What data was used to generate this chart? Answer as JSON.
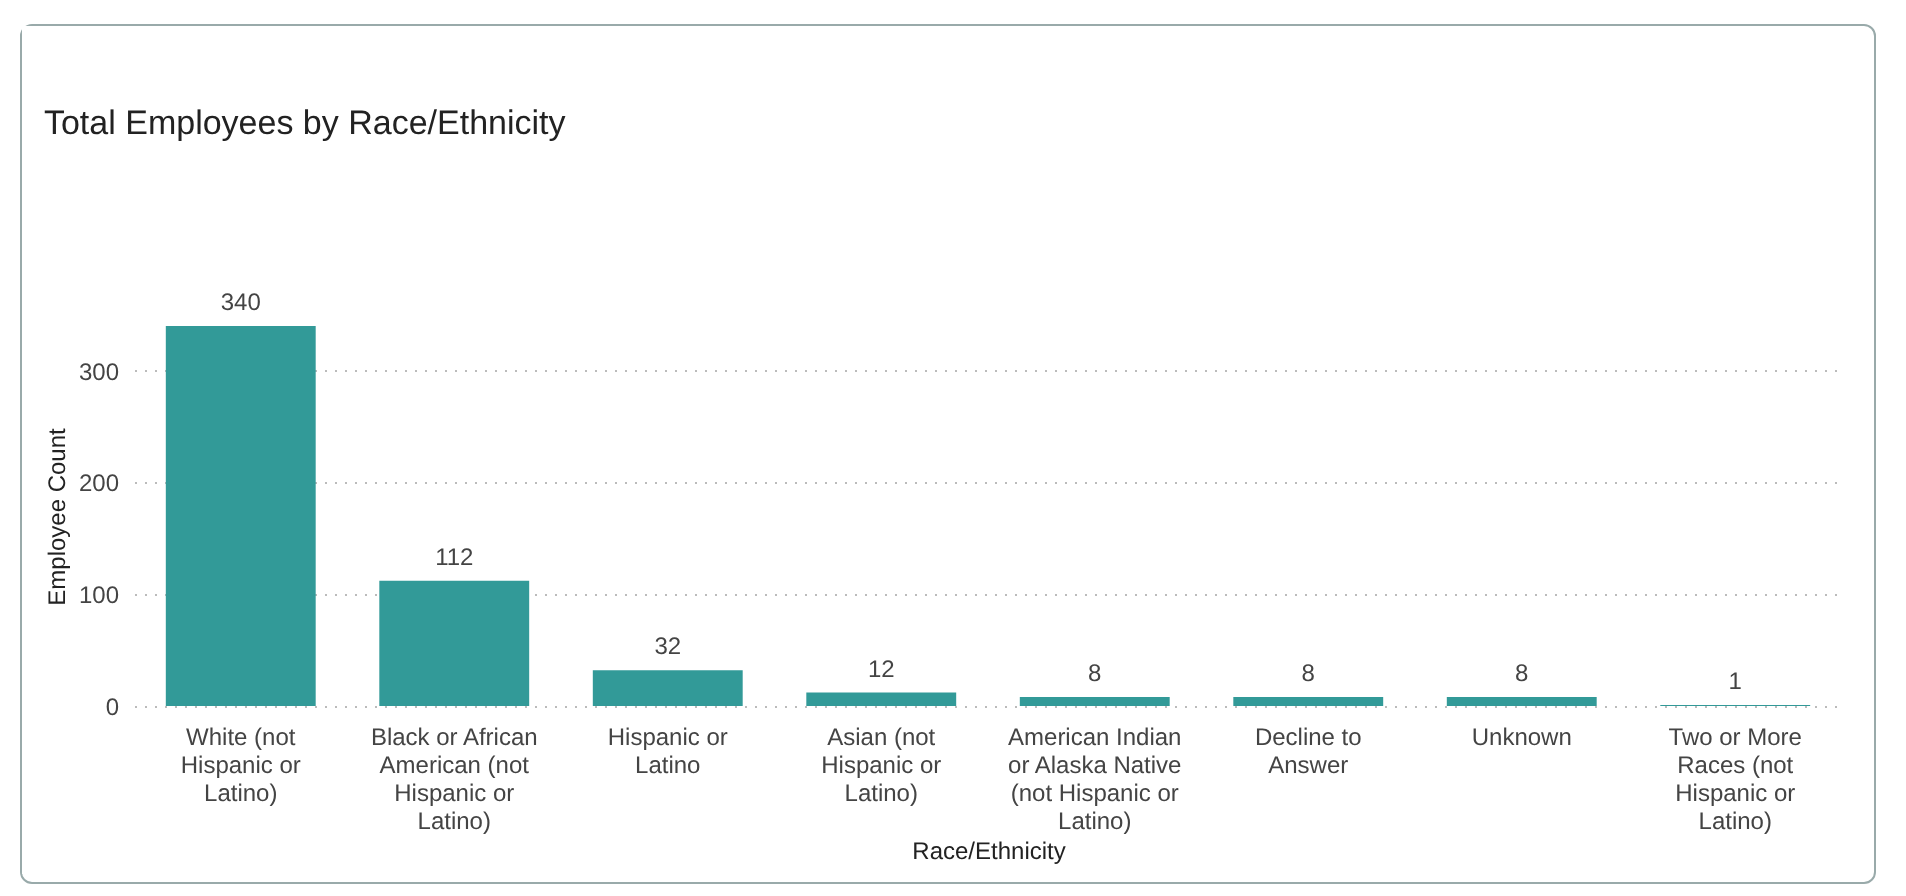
{
  "chart_data": {
    "type": "bar",
    "title": "Total Employees by Race/Ethnicity",
    "xlabel": "Race/Ethnicity",
    "ylabel": "Employee Count",
    "categories": [
      "White (not Hispanic or Latino)",
      "Black or African American (not Hispanic or Latino)",
      "Hispanic or Latino",
      "Asian (not Hispanic or Latino)",
      "American Indian or Alaska Native (not Hispanic or Latino)",
      "Decline to Answer",
      "Unknown",
      "Two or More Races (not Hispanic or Latino)"
    ],
    "values": [
      340,
      112,
      32,
      12,
      8,
      8,
      8,
      1
    ],
    "color": "#329a98",
    "ylim": [
      0,
      340
    ],
    "yticks": [
      0,
      100,
      200,
      300
    ],
    "grid": "y",
    "data_labels": true
  }
}
